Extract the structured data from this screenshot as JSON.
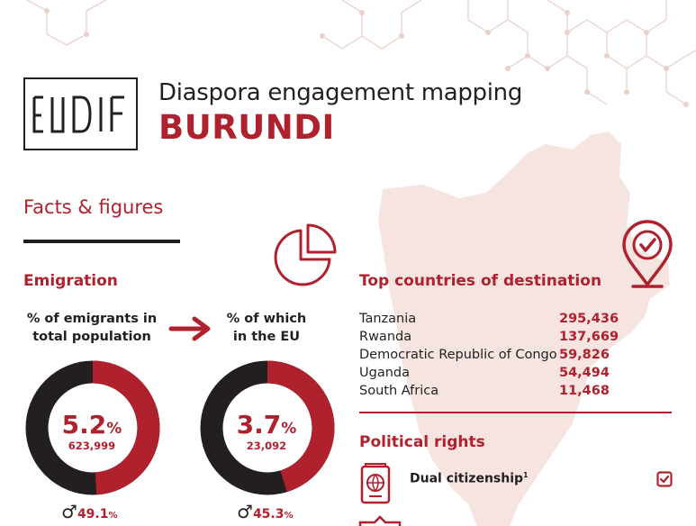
{
  "header": {
    "logo_text": "EUDiF",
    "title": "Diaspora engagement mapping",
    "country": "BURUNDI"
  },
  "facts": {
    "heading": "Facts & figures"
  },
  "emigration": {
    "heading": "Emigration",
    "total": {
      "label_line1": "% of emigrants in",
      "label_line2": "total population",
      "percent": "5.2",
      "percent_value": 5.2,
      "percent_sign": "%",
      "count": "623,999",
      "male_share": "49.1",
      "male_share_value": 49.1,
      "male_sign": "%"
    },
    "eu": {
      "label_line1": "% of which",
      "label_line2": "in the EU",
      "percent": "3.7",
      "percent_value": 3.7,
      "percent_sign": "%",
      "count": "23,092",
      "male_share": "45.3",
      "male_share_value": 45.3,
      "male_sign": "%"
    },
    "arrow_icon": "right-arrow-icon",
    "chart_icon": "pie-chart-icon"
  },
  "destinations": {
    "heading": "Top countries of destination",
    "icon": "location-pin-check-icon",
    "rows": [
      {
        "country": "Tanzania",
        "value": "295,436"
      },
      {
        "country": "Rwanda",
        "value": "137,669"
      },
      {
        "country": "Democratic Republic of Congo",
        "value": "59,826"
      },
      {
        "country": "Uganda",
        "value": "54,494"
      },
      {
        "country": "South Africa",
        "value": "11,468"
      }
    ]
  },
  "political_rights": {
    "heading": "Political rights",
    "dual_citizenship_label": "Dual citizenship",
    "dual_citizenship_footnote": "1",
    "dual_citizenship_checked": true,
    "passport_icon": "passport-icon",
    "check_icon": "checkbox-checked-icon"
  },
  "colors": {
    "accent": "#b0212e",
    "dark": "#231f20",
    "map": "#f6e4e1"
  }
}
